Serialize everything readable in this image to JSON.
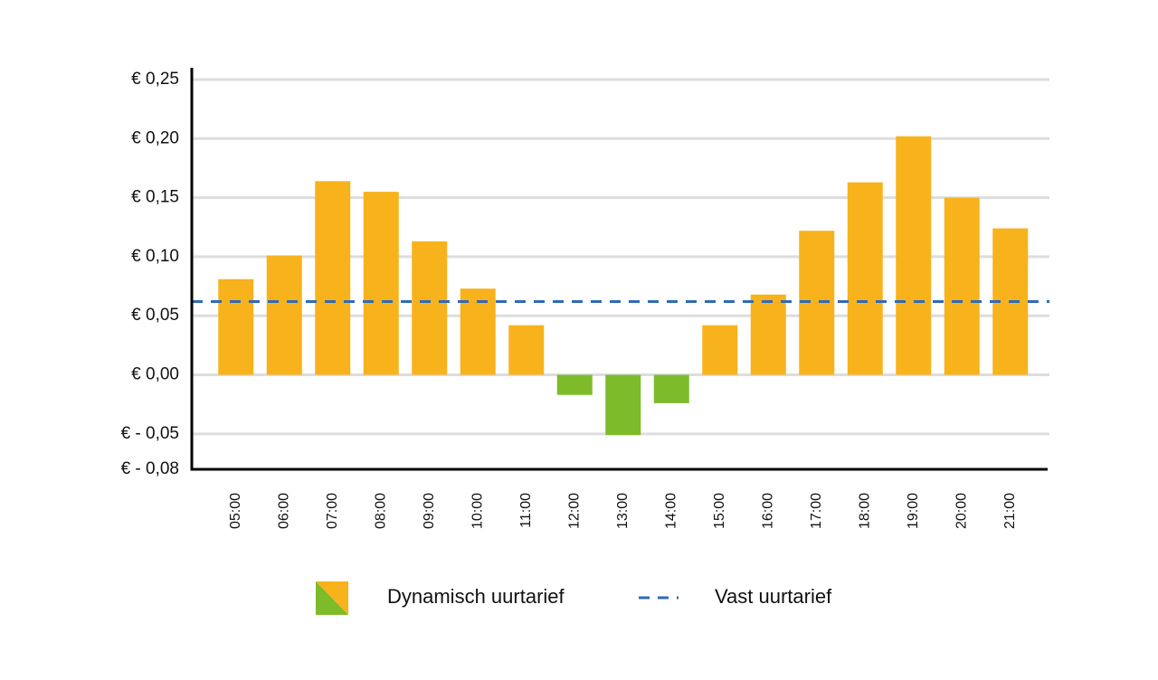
{
  "chart_data": {
    "type": "bar",
    "categories": [
      "05:00",
      "06:00",
      "07:00",
      "08:00",
      "09:00",
      "10:00",
      "11:00",
      "12:00",
      "13:00",
      "14:00",
      "15:00",
      "16:00",
      "17:00",
      "18:00",
      "19:00",
      "20:00",
      "21:00"
    ],
    "series": [
      {
        "name": "Dynamisch uurtarief",
        "color": "#f8b21c",
        "negative_color": "#7dbb2b",
        "values": [
          0.081,
          0.101,
          0.164,
          0.155,
          0.113,
          0.073,
          0.042,
          -0.017,
          -0.051,
          -0.024,
          0.042,
          0.068,
          0.122,
          0.163,
          0.202,
          0.15,
          0.124
        ]
      },
      {
        "name": "Vast uurtarief",
        "type": "line",
        "color": "#2e6bb8",
        "dashed": true,
        "value": 0.062
      }
    ],
    "ylim": [
      -0.08,
      0.25
    ],
    "yticks": [
      {
        "value": -0.08,
        "label": "€ - 0,08"
      },
      {
        "value": -0.05,
        "label": "€ - 0,05"
      },
      {
        "value": 0,
        "label": "€ 0,00"
      },
      {
        "value": 0.05,
        "label": "€ 0,05"
      },
      {
        "value": 0.1,
        "label": "€ 0,10"
      },
      {
        "value": 0.15,
        "label": "€ 0,15"
      },
      {
        "value": 0.2,
        "label": "€ 0,20"
      },
      {
        "value": 0.25,
        "label": "€ 0,25"
      }
    ],
    "grid": true,
    "legend": "bottom"
  }
}
